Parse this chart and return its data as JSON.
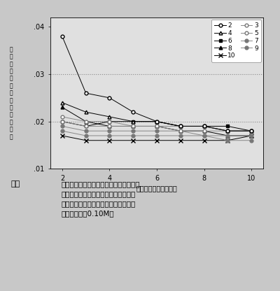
{
  "x_values": [
    2,
    3,
    4,
    5,
    6,
    7,
    8,
    9,
    10
  ],
  "series": {
    "2": [
      0.038,
      0.026,
      0.025,
      0.022,
      0.02,
      0.019,
      0.019,
      0.018,
      0.018
    ],
    "3": [
      0.021,
      0.02,
      0.02,
      0.019,
      0.019,
      0.019,
      0.019,
      0.018,
      0.018
    ],
    "4": [
      0.024,
      0.022,
      0.021,
      0.02,
      0.02,
      0.019,
      0.019,
      0.018,
      0.018
    ],
    "5": [
      0.02,
      0.019,
      0.019,
      0.019,
      0.019,
      0.018,
      0.018,
      0.018,
      0.018
    ],
    "6": [
      0.02,
      0.019,
      0.02,
      0.02,
      0.02,
      0.019,
      0.019,
      0.019,
      0.018
    ],
    "7": [
      0.019,
      0.018,
      0.018,
      0.018,
      0.018,
      0.018,
      0.017,
      0.017,
      0.017
    ],
    "8": [
      0.023,
      0.02,
      0.019,
      0.019,
      0.019,
      0.018,
      0.018,
      0.017,
      0.017
    ],
    "9": [
      0.018,
      0.017,
      0.017,
      0.017,
      0.017,
      0.017,
      0.017,
      0.016,
      0.016
    ],
    "10": [
      0.017,
      0.016,
      0.016,
      0.016,
      0.016,
      0.016,
      0.016,
      0.016,
      0.017
    ]
  },
  "hlines": [
    0.03,
    0.02
  ],
  "xlim": [
    1.5,
    10.5
  ],
  "ylim": [
    0.01,
    0.042
  ],
  "yticks": [
    0.01,
    0.02,
    0.03,
    0.04
  ],
  "xticks": [
    2,
    4,
    6,
    8,
    10
  ],
  "bg_color": "#c8c8c8",
  "plot_bg_color": "#e0e0e0",
  "caption_bg": "#c8c8c8",
  "figsize": [
    4.0,
    4.16
  ],
  "dpi": 100
}
